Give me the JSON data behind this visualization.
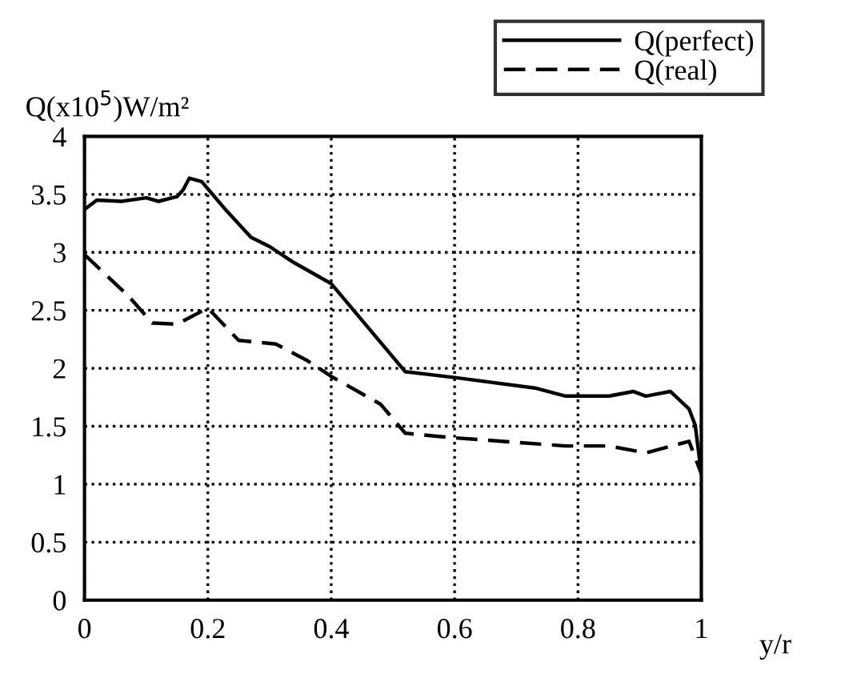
{
  "chart_data": {
    "type": "line",
    "ylabel": "Q(x10$^{5}$)W/m²",
    "xlabel": "y/r",
    "xlim": [
      0,
      1
    ],
    "ylim": [
      0,
      4
    ],
    "xticks": [
      0,
      0.2,
      0.4,
      0.6,
      0.8,
      1
    ],
    "yticks": [
      0,
      0.5,
      1,
      1.5,
      2,
      2.5,
      3,
      3.5,
      4
    ],
    "grid": true,
    "legend": "top right",
    "marker": "none",
    "series": [
      {
        "name": "Q(perfect)",
        "color": "#000000",
        "line_style": "solid",
        "x": [
          0,
          0.02,
          0.06,
          0.1,
          0.12,
          0.15,
          0.16,
          0.17,
          0.19,
          0.23,
          0.27,
          0.3,
          0.34,
          0.39,
          0.4,
          0.52,
          0.6,
          0.73,
          0.78,
          0.85,
          0.89,
          0.91,
          0.95,
          0.98,
          0.99,
          1.0
        ],
        "values": [
          3.37,
          3.45,
          3.44,
          3.47,
          3.44,
          3.48,
          3.54,
          3.64,
          3.61,
          3.36,
          3.13,
          3.05,
          2.91,
          2.76,
          2.73,
          1.97,
          1.92,
          1.83,
          1.76,
          1.76,
          1.8,
          1.76,
          1.8,
          1.65,
          1.51,
          1.09
        ]
      },
      {
        "name": "Q(real)",
        "color": "#000000",
        "line_style": "dashed",
        "x": [
          0,
          0.07,
          0.11,
          0.15,
          0.2,
          0.25,
          0.31,
          0.36,
          0.4,
          0.48,
          0.52,
          0.6,
          0.78,
          0.85,
          0.91,
          0.98,
          1.0
        ],
        "values": [
          2.98,
          2.63,
          2.39,
          2.38,
          2.52,
          2.24,
          2.21,
          2.07,
          1.93,
          1.69,
          1.44,
          1.4,
          1.33,
          1.33,
          1.27,
          1.37,
          1.09
        ]
      }
    ]
  }
}
